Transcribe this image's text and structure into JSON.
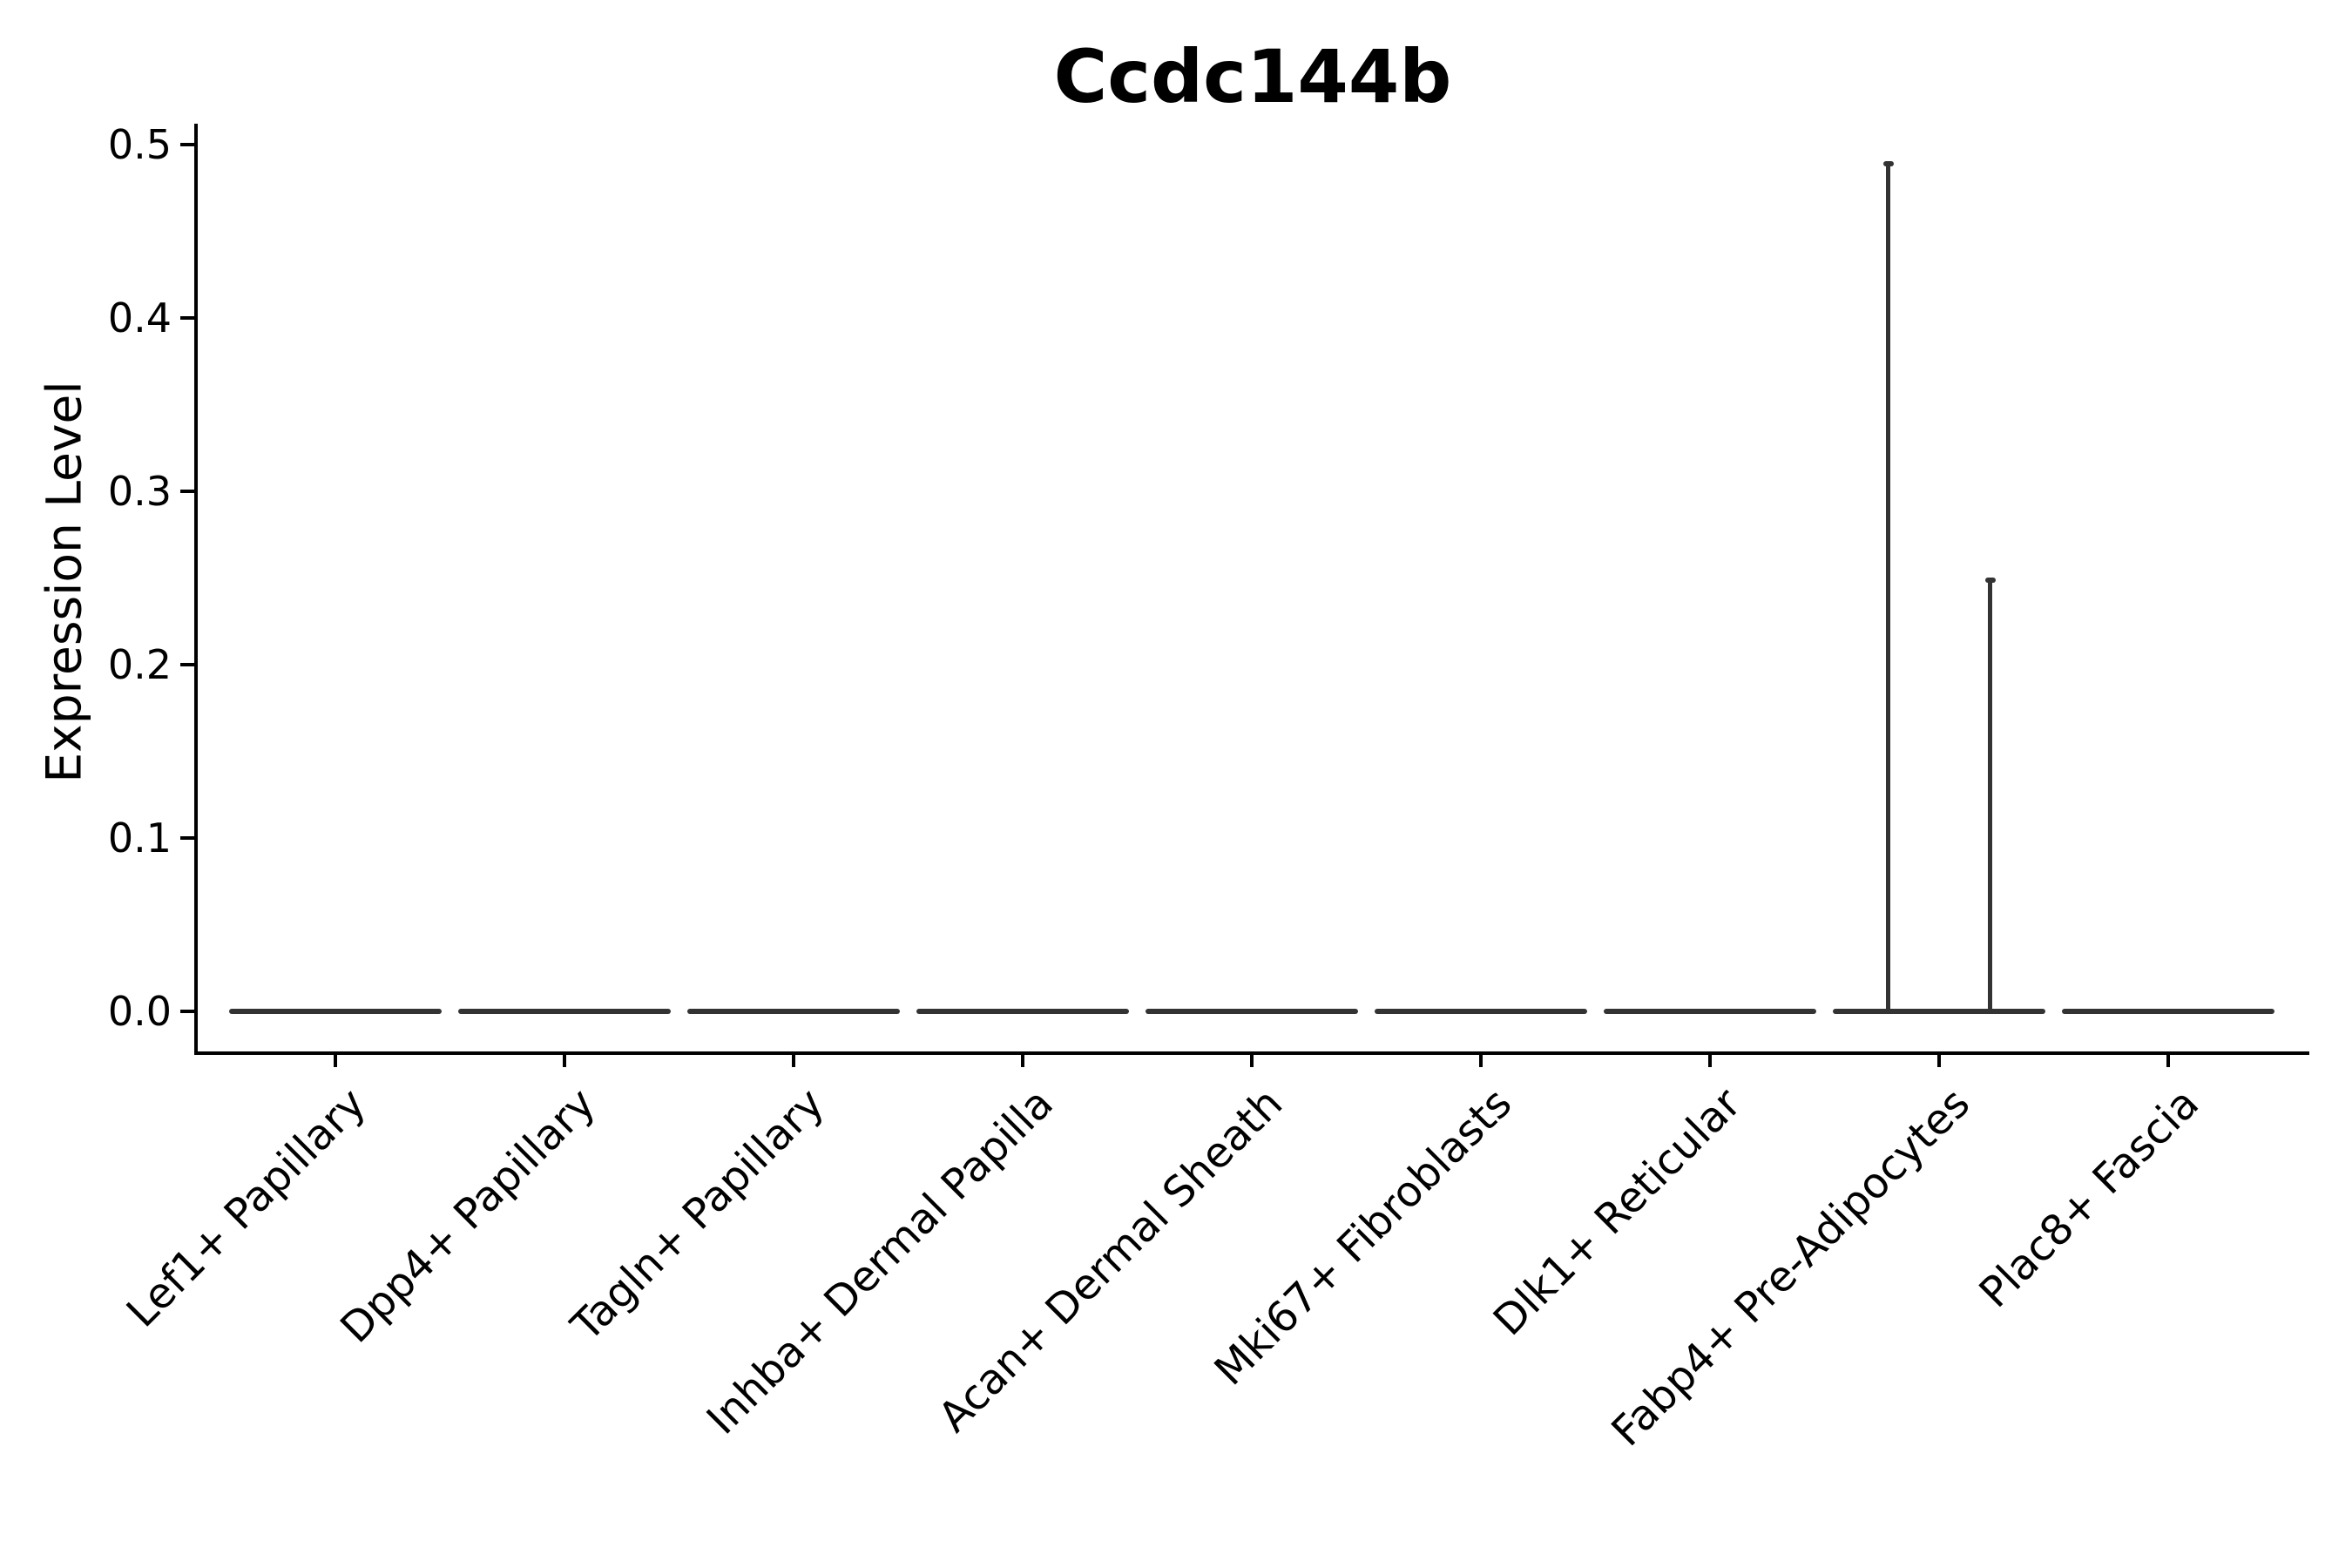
{
  "figure": {
    "title": "Ccdc144b"
  },
  "chart_data": {
    "type": "violin",
    "title": "Ccdc144b",
    "ylabel": "Expression Level",
    "xlabel": "",
    "ylim": [
      -0.012,
      0.512
    ],
    "ytick_values": [
      0.0,
      0.1,
      0.2,
      0.3,
      0.4,
      0.5
    ],
    "ytick_labels": [
      "0.0",
      "0.1",
      "0.2",
      "0.3",
      "0.4",
      "0.5"
    ],
    "grid": false,
    "legend": "none",
    "x_label_rotation_deg": 45,
    "violin_fill": "#333333",
    "axis_color": "#000000",
    "background": "#ffffff",
    "categories": [
      "Lef1+ Papillary",
      "Dpp4+ Papillary",
      "Tagln+ Papillary",
      "Inhba+ Dermal Papilla",
      "Acan+ Dermal Sheath",
      "Mki67+ Fibroblasts",
      "Dlk1+ Reticular",
      "Fabp4+ Pre-Adipocytes",
      "Plac8+ Fascia"
    ],
    "violins": [
      {
        "category": "Lef1+ Papillary",
        "shape": "flat-at-zero",
        "max": 0.0,
        "spikes": []
      },
      {
        "category": "Dpp4+ Papillary",
        "shape": "flat-at-zero",
        "max": 0.0,
        "spikes": []
      },
      {
        "category": "Tagln+ Papillary",
        "shape": "flat-at-zero",
        "max": 0.0,
        "spikes": []
      },
      {
        "category": "Inhba+ Dermal Papilla",
        "shape": "flat-at-zero",
        "max": 0.0,
        "spikes": []
      },
      {
        "category": "Acan+ Dermal Sheath",
        "shape": "flat-at-zero",
        "max": 0.0,
        "spikes": []
      },
      {
        "category": "Mki67+ Fibroblasts",
        "shape": "flat-at-zero",
        "max": 0.0,
        "spikes": []
      },
      {
        "category": "Dlk1+ Reticular",
        "shape": "flat-at-zero",
        "max": 0.0,
        "spikes": []
      },
      {
        "category": "Fabp4+ Pre-Adipocytes",
        "shape": "flat-at-zero",
        "max": 0.49,
        "spikes": [
          {
            "side": "left",
            "value": 0.49
          },
          {
            "side": "right",
            "value": 0.25
          }
        ]
      },
      {
        "category": "Plac8+ Fascia",
        "shape": "flat-at-zero",
        "max": 0.0,
        "spikes": []
      }
    ]
  }
}
